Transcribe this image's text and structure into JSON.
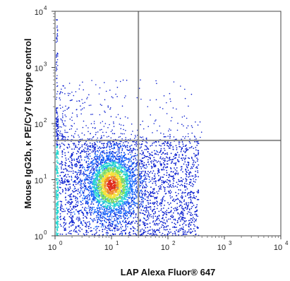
{
  "chart_data": {
    "type": "scatter",
    "subtype": "flow-cytometry-density-plot",
    "xlabel": "LAP  Alexa Fluor® 647",
    "ylabel": "Mouse IgG2b, κ PE/Cy7  Isotype control",
    "x_scale": "log",
    "y_scale": "log",
    "xlim": [
      1,
      10000
    ],
    "ylim": [
      1,
      10000
    ],
    "x_ticks": [
      {
        "base": "10",
        "exp": "0"
      },
      {
        "base": "10",
        "exp": "1"
      },
      {
        "base": "10",
        "exp": "2"
      },
      {
        "base": "10",
        "exp": "3"
      },
      {
        "base": "10",
        "exp": "4"
      }
    ],
    "y_ticks": [
      {
        "base": "10",
        "exp": "0"
      },
      {
        "base": "10",
        "exp": "1"
      },
      {
        "base": "10",
        "exp": "2"
      },
      {
        "base": "10",
        "exp": "3"
      },
      {
        "base": "10",
        "exp": "4"
      }
    ],
    "quadrant_gates": {
      "x": 30,
      "y": 50
    },
    "population": {
      "center": [
        10,
        8
      ],
      "x_range": [
        1.2,
        350
      ],
      "y_range": [
        1,
        50
      ],
      "sparse_upper_region": [
        1,
        600
      ],
      "density_colors": [
        "#0a1ecf",
        "#1a6cff",
        "#23d6d0",
        "#7fe05a",
        "#f5e23a",
        "#f08a2a",
        "#e02a1a"
      ]
    },
    "grid": false,
    "legend": "none"
  }
}
